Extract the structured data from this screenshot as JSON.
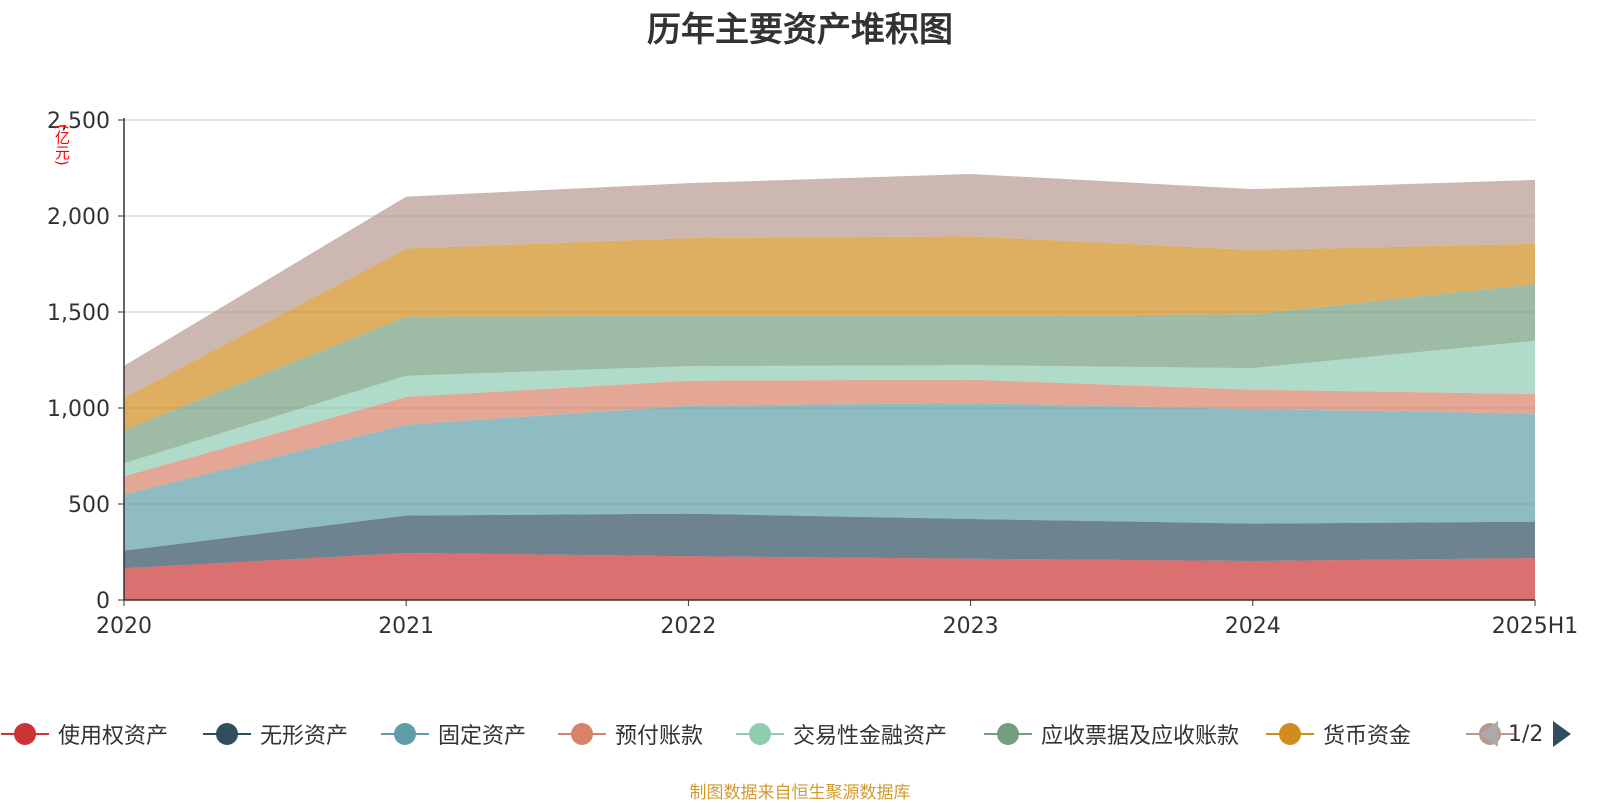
{
  "colors": {
    "series": [
      "#cc3333",
      "#2f4f5f",
      "#5f9ea8",
      "#d9826a",
      "#8fccb0",
      "#739e7f",
      "#d08c1e",
      "#b89890"
    ],
    "grid": "#c8c8c8",
    "axis": "#333333"
  },
  "chart_data": {
    "type": "area",
    "stacked": true,
    "title": "历年主要资产堆积图",
    "ylabel": "亿元",
    "ylim": [
      0,
      2500
    ],
    "yticks": [
      "0",
      "500",
      "1,000",
      "1,500",
      "2,000",
      "2,500"
    ],
    "categories": [
      "2020",
      "2021",
      "2022",
      "2023",
      "2024",
      "2025H1"
    ],
    "grid": true,
    "legend_position": "bottom",
    "series": [
      {
        "name": "使用权资产",
        "values": [
          165,
          245,
          228,
          215,
          203,
          218
        ]
      },
      {
        "name": "无形资产",
        "values": [
          92,
          195,
          222,
          207,
          195,
          190
        ]
      },
      {
        "name": "固定资产",
        "values": [
          293,
          473,
          562,
          603,
          597,
          562
        ]
      },
      {
        "name": "预付账款",
        "values": [
          95,
          145,
          130,
          123,
          100,
          103
        ]
      },
      {
        "name": "交易性金融资产",
        "values": [
          67,
          110,
          76,
          75,
          113,
          277
        ]
      },
      {
        "name": "应收票据及应收账款",
        "values": [
          173,
          307,
          262,
          256,
          280,
          295
        ]
      },
      {
        "name": "货币资金",
        "values": [
          168,
          355,
          405,
          415,
          335,
          210
        ]
      },
      {
        "name": "",
        "values": [
          167,
          271,
          286,
          325,
          317,
          333
        ]
      }
    ]
  },
  "legend": {
    "page_indicator": "1/2",
    "prev_icon": "triangle-left-icon",
    "next_icon": "triangle-right-icon"
  },
  "source_note": "制图数据来自恒生聚源数据库"
}
